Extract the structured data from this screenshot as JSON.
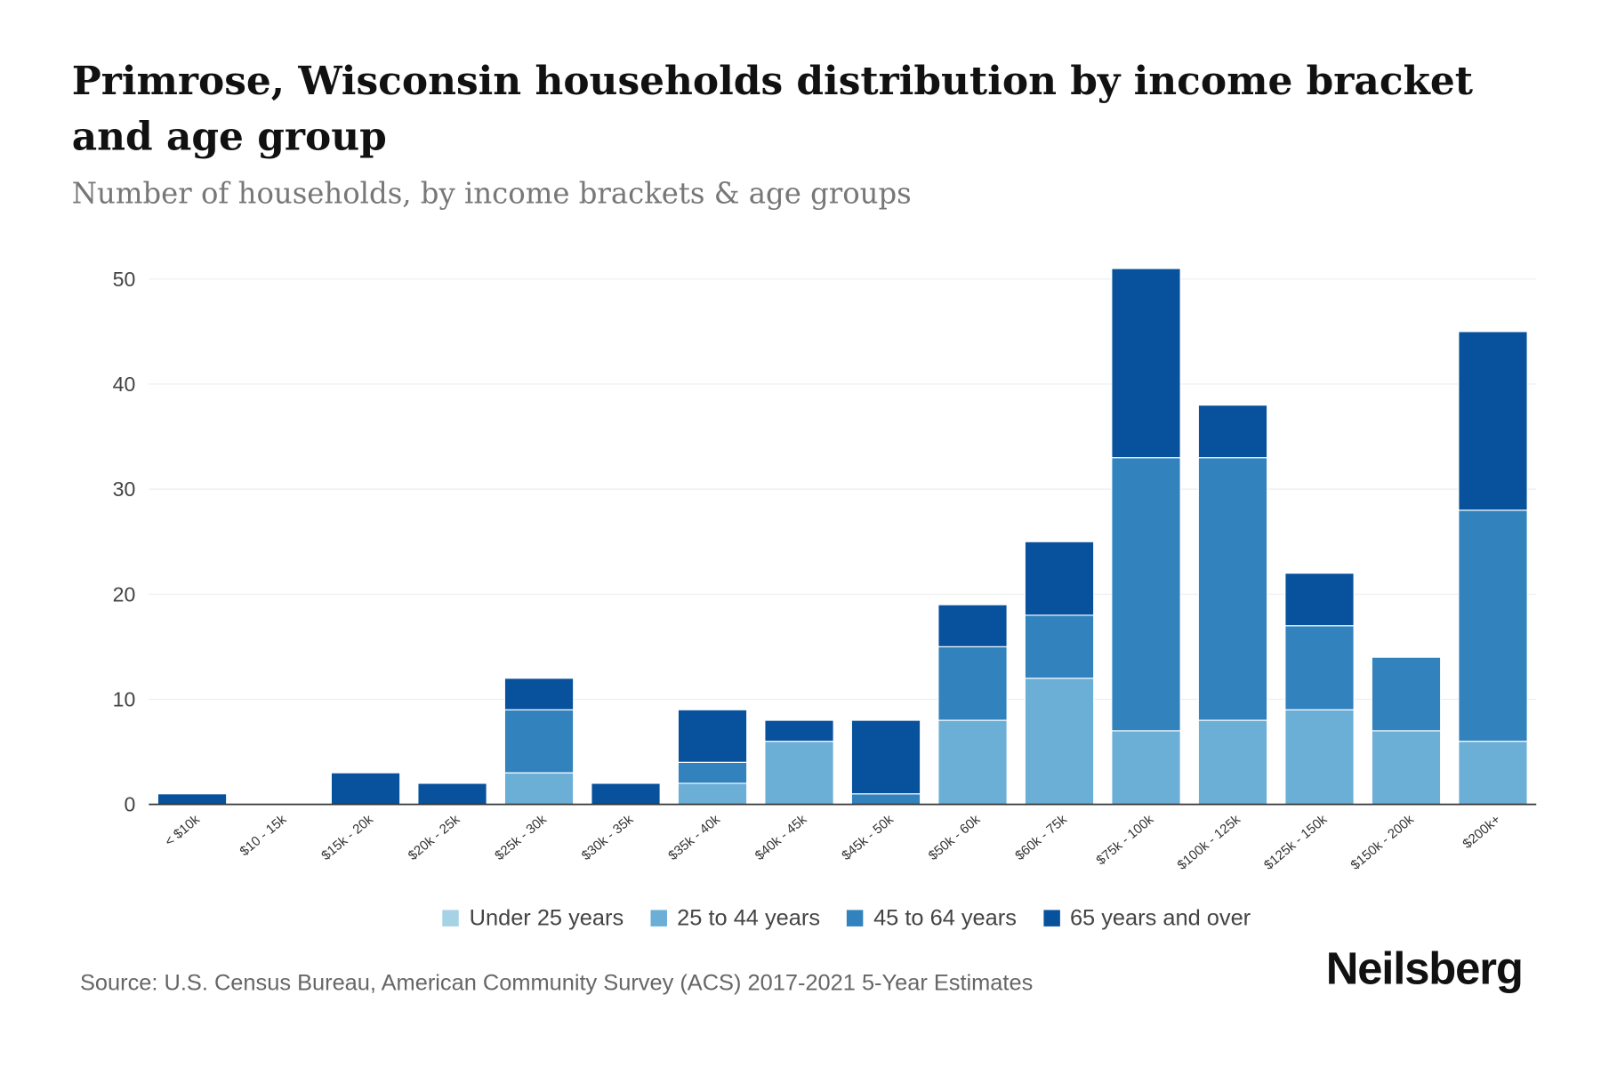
{
  "title": "Primrose, Wisconsin households distribution by income bracket and age group",
  "subtitle": "Number of households, by income brackets & age groups",
  "source": "Source: U.S. Census Bureau, American Community Survey (ACS) 2017-2021 5-Year Estimates",
  "logo": "Neilsberg",
  "chart_data": {
    "type": "bar",
    "stacked": true,
    "title": "Primrose, Wisconsin households distribution by income bracket and age group",
    "ylim": [
      0,
      50
    ],
    "yticks": [
      "0",
      "10",
      "20",
      "30",
      "40",
      "50"
    ],
    "grid": true,
    "legend_position": "bottom",
    "categories": [
      "< $10k",
      "$10 - 15k",
      "$15k - 20k",
      "$20k - 25k",
      "$25k - 30k",
      "$30k - 35k",
      "$35k - 40k",
      "$40k - 45k",
      "$45k - 50k",
      "$50k - 60k",
      "$60k - 75k",
      "$75k - 100k",
      "$100k - 125k",
      "$125k - 150k",
      "$150k - 200k",
      "$200k+"
    ],
    "series": [
      {
        "name": "Under 25 years",
        "color": "#a6d2e6",
        "values": [
          0,
          0,
          0,
          0,
          0,
          0,
          0,
          0,
          0,
          0,
          0,
          0,
          0,
          0,
          0,
          0
        ]
      },
      {
        "name": "25 to 44 years",
        "color": "#6baed6",
        "values": [
          0,
          0,
          0,
          0,
          3,
          0,
          2,
          6,
          0,
          8,
          12,
          7,
          8,
          9,
          7,
          6
        ]
      },
      {
        "name": "45 to 64 years",
        "color": "#3182bd",
        "values": [
          0,
          0,
          0,
          0,
          6,
          0,
          2,
          0,
          1,
          7,
          6,
          26,
          25,
          8,
          7,
          22
        ]
      },
      {
        "name": "65 years and over",
        "color": "#08519c",
        "values": [
          1,
          0,
          3,
          2,
          3,
          2,
          5,
          2,
          7,
          4,
          7,
          18,
          5,
          5,
          0,
          17
        ]
      }
    ]
  }
}
